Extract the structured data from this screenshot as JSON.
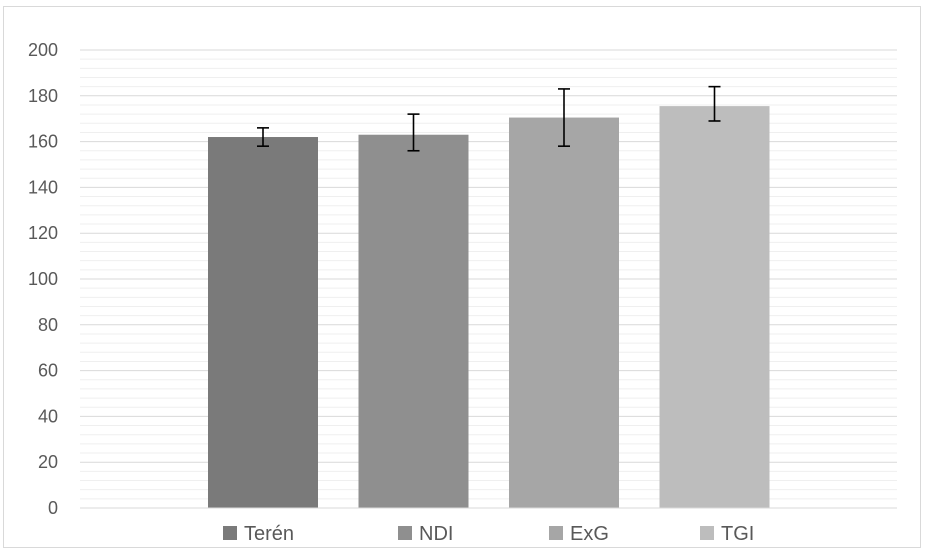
{
  "chart_data": {
    "type": "bar",
    "title": "",
    "xlabel": "",
    "ylabel": "",
    "ylim": [
      0,
      200
    ],
    "major_tick_step": 20,
    "minor_tick_step": 4,
    "grid": true,
    "legend_position": "bottom",
    "y_ticks": [
      "0",
      "20",
      "40",
      "60",
      "80",
      "100",
      "120",
      "140",
      "160",
      "180",
      "200"
    ],
    "series": [
      {
        "name": "Terén",
        "value": 162,
        "error_low": 158,
        "error_high": 166,
        "color": "#7a7a7a"
      },
      {
        "name": "NDI",
        "value": 163,
        "error_low": 156,
        "error_high": 172,
        "color": "#8f8f8f"
      },
      {
        "name": "ExG",
        "value": 170.5,
        "error_low": 158,
        "error_high": 183,
        "color": "#a6a6a6"
      },
      {
        "name": "TGI",
        "value": 175.5,
        "error_low": 169,
        "error_high": 184,
        "color": "#bdbdbd"
      }
    ]
  }
}
